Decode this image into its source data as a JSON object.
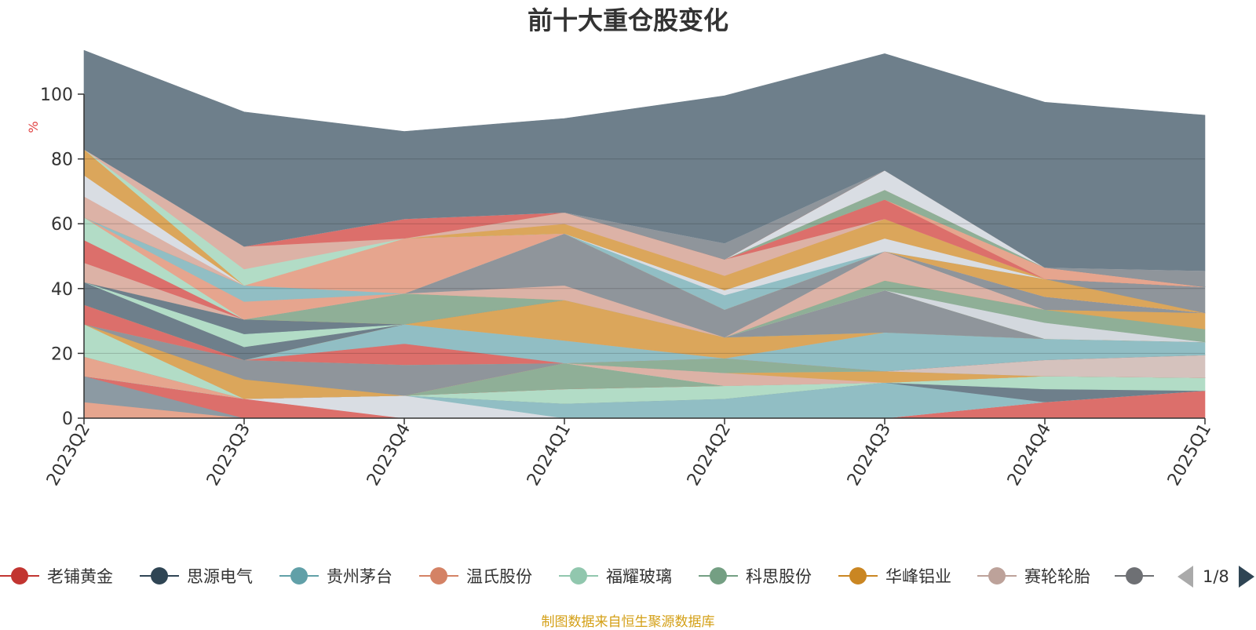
{
  "chart_data": {
    "type": "area",
    "title": "前十大重仓股变化",
    "ylabel": "%",
    "ylim": [
      0,
      100
    ],
    "yticks": [
      0,
      20,
      40,
      60,
      80,
      100
    ],
    "grid": true,
    "categories": [
      "2023Q2",
      "2023Q3",
      "2023Q4",
      "2024Q1",
      "2024Q2",
      "2024Q3",
      "2024Q4",
      "2025Q1"
    ],
    "bands": [
      {
        "color": "#e6a58e",
        "values": [
          0,
          0,
          0,
          0,
          0,
          0,
          0,
          0
        ]
      },
      {
        "color": "#d9dde3",
        "values": [
          0,
          0,
          0,
          0,
          0,
          0,
          0,
          0
        ]
      },
      {
        "color": "#d3d8de",
        "values": [
          0,
          0,
          0,
          0,
          0,
          0,
          0,
          0
        ]
      },
      {
        "color": "#91bec4",
        "values": [
          0,
          0,
          0,
          0,
          0,
          0,
          0,
          0
        ]
      },
      {
        "color": "#b2dcc6",
        "values": [
          0,
          0,
          0,
          0,
          0,
          0,
          0,
          0
        ]
      },
      {
        "color": "#dd8c8a",
        "values": [
          0,
          0,
          0,
          0,
          0,
          0,
          0,
          0
        ]
      },
      {
        "color": "#dc6f6b",
        "values": [
          0,
          0,
          0,
          0,
          0,
          0,
          0,
          0
        ]
      }
    ],
    "layers": [
      {
        "color": "#e6a58e",
        "values": [
          5,
          0,
          0,
          0,
          0,
          0,
          0,
          0
        ]
      },
      {
        "color": "#8c9aa3",
        "values": [
          8,
          0,
          0,
          0,
          0,
          0,
          0,
          0
        ]
      },
      {
        "color": "#dc6f6b",
        "values": [
          0,
          6,
          0,
          0,
          0,
          0,
          5,
          8.5
        ]
      },
      {
        "color": "#d9dde3",
        "values": [
          0,
          0,
          7,
          0,
          0,
          0,
          0,
          0
        ]
      },
      {
        "color": "#91bec4",
        "values": [
          0,
          0,
          0,
          4.5,
          6,
          11,
          0,
          0
        ]
      },
      {
        "color": "#6e7f8b",
        "values": [
          0,
          0,
          0,
          0,
          0,
          0,
          4,
          0
        ]
      },
      {
        "color": "#b2dcc6",
        "values": [
          0,
          0,
          0,
          4.5,
          4,
          0,
          4,
          4
        ]
      },
      {
        "color": "#e6a58e",
        "values": [
          6,
          0,
          0,
          0,
          0,
          0,
          0,
          0
        ]
      },
      {
        "color": "#dc6f6b",
        "values": [
          0,
          0,
          0,
          0,
          0,
          0,
          0,
          0
        ]
      },
      {
        "color": "#8faf97",
        "values": [
          0,
          0,
          0,
          8,
          0,
          0,
          0,
          0
        ]
      },
      {
        "color": "#b2dcc6",
        "values": [
          10,
          0,
          0,
          0,
          0,
          0,
          0,
          0
        ]
      },
      {
        "color": "#dcb2a6",
        "values": [
          0,
          0,
          0,
          0,
          4,
          0,
          0,
          0
        ]
      },
      {
        "color": "#dba65b",
        "values": [
          0,
          6,
          0,
          0,
          0,
          3.5,
          0,
          0
        ]
      },
      {
        "color": "#8f959b",
        "values": [
          0,
          6,
          9.5,
          0,
          0,
          0,
          0,
          0
        ]
      },
      {
        "color": "#d5c2bd",
        "values": [
          0,
          0,
          0,
          0,
          0,
          0,
          5,
          7
        ]
      },
      {
        "color": "#8faf97",
        "values": [
          0,
          0,
          0,
          0,
          4.5,
          0,
          0,
          0
        ]
      },
      {
        "color": "#dc6f6b",
        "values": [
          6,
          0,
          6.5,
          0,
          0,
          0,
          0,
          0
        ]
      },
      {
        "color": "#91bec4",
        "values": [
          0,
          0,
          6,
          7,
          0,
          12,
          6.5,
          4
        ]
      },
      {
        "color": "#dcb2a6",
        "values": [
          0,
          0,
          0,
          0,
          0,
          0,
          0,
          0
        ]
      },
      {
        "color": "#dba65b",
        "values": [
          0,
          0,
          0,
          12.5,
          6.5,
          0,
          0,
          0
        ]
      },
      {
        "color": "#6e7f8b",
        "values": [
          7,
          4,
          0,
          0,
          0,
          0,
          0,
          0
        ]
      },
      {
        "color": "#9aa0a6",
        "values": [
          0,
          0,
          0,
          0,
          0,
          0,
          0,
          0
        ]
      },
      {
        "color": "#b2dcc6",
        "values": [
          0,
          4,
          0,
          0,
          0,
          0,
          0,
          0
        ]
      },
      {
        "color": "#8f959b",
        "values": [
          0,
          0,
          0,
          0,
          0,
          13,
          0,
          0
        ]
      },
      {
        "color": "#91bec4",
        "values": [
          0,
          0,
          0,
          0,
          0,
          0,
          0,
          0
        ]
      },
      {
        "color": "#6e7f8b",
        "values": [
          0,
          4.5,
          0,
          0,
          0,
          0,
          0,
          0
        ]
      },
      {
        "color": "#dba65b",
        "values": [
          0,
          0,
          0,
          0,
          0,
          0,
          0,
          0
        ]
      },
      {
        "color": "#8faf97",
        "values": [
          0,
          0,
          9.5,
          0,
          0,
          0,
          0,
          0
        ]
      },
      {
        "color": "#d3d8de",
        "values": [
          0,
          0,
          0,
          0,
          0,
          0,
          5,
          0
        ]
      },
      {
        "color": "#8faf97",
        "values": [
          0,
          0,
          0,
          0,
          0,
          3,
          4,
          4
        ]
      },
      {
        "color": "#dba65b",
        "values": [
          0,
          0,
          0,
          0,
          0,
          0,
          0,
          5
        ]
      },
      {
        "color": "#dcb2a6",
        "values": [
          0,
          0,
          0,
          4.5,
          0,
          9,
          0,
          0
        ]
      },
      {
        "color": "#8f959b",
        "values": [
          0,
          0,
          0,
          16,
          8.5,
          0,
          0,
          0
        ]
      },
      {
        "color": "#8f959b",
        "values": [
          0,
          0,
          0,
          0,
          0,
          0,
          4,
          0
        ]
      },
      {
        "color": "#6e7f8b",
        "values": [
          0,
          0,
          0,
          0,
          0,
          0,
          0,
          0
        ]
      },
      {
        "color": "#dcb2a6",
        "values": [
          6,
          0,
          0,
          0,
          0,
          0,
          0,
          0
        ]
      },
      {
        "color": "#dc6f6b",
        "values": [
          7,
          0,
          0,
          0,
          0,
          0,
          0,
          0
        ]
      },
      {
        "color": "#b2dcc6",
        "values": [
          7,
          0,
          0,
          0,
          0,
          0,
          0,
          0
        ]
      },
      {
        "color": "#e6a58e",
        "values": [
          0,
          5.5,
          0,
          0,
          0,
          0,
          0,
          0
        ]
      },
      {
        "color": "#91bec4",
        "values": [
          0,
          5,
          0,
          0,
          0,
          0,
          0,
          0
        ]
      },
      {
        "color": "#e6a58e",
        "values": [
          0,
          0,
          17,
          0,
          0,
          0,
          0,
          0
        ]
      },
      {
        "color": "#dba65b",
        "values": [
          0,
          0,
          0,
          0,
          0,
          0,
          5.5,
          0
        ]
      },
      {
        "color": "#8f959b",
        "values": [
          0,
          0,
          0,
          0,
          0,
          0,
          0,
          8
        ]
      },
      {
        "color": "#91bec4",
        "values": [
          0,
          0,
          0,
          0,
          4.5,
          0,
          0,
          0
        ]
      },
      {
        "color": "#d9dde3",
        "values": [
          0,
          0,
          0,
          0,
          1.5,
          4,
          0,
          0
        ]
      },
      {
        "color": "#dba65b",
        "values": [
          0,
          0,
          0,
          3,
          4.5,
          6,
          0,
          0
        ]
      },
      {
        "color": "#dcb2a6",
        "values": [
          0,
          0,
          0,
          3.5,
          5,
          0,
          0,
          0
        ]
      },
      {
        "color": "#dc6f6b",
        "values": [
          0,
          0,
          0,
          0,
          0,
          6,
          0,
          0
        ]
      },
      {
        "color": "#e6a58e",
        "values": [
          0,
          0,
          0,
          0,
          0,
          0,
          3.5,
          0
        ]
      },
      {
        "color": "#8faf97",
        "values": [
          0,
          0,
          0,
          0,
          0,
          3,
          0,
          0
        ]
      },
      {
        "color": "#dcb2a6",
        "values": [
          6.5,
          0,
          0,
          0,
          0,
          0,
          0,
          0
        ]
      },
      {
        "color": "#d9dde3",
        "values": [
          0,
          0,
          0,
          0,
          0,
          6,
          0,
          0
        ]
      },
      {
        "color": "#d9dde3",
        "values": [
          6.5,
          0,
          0,
          0,
          0,
          0,
          0,
          0
        ]
      },
      {
        "color": "#dba65b",
        "values": [
          8,
          0,
          0,
          0,
          0,
          0,
          0,
          0
        ]
      },
      {
        "color": "#b2dcc6",
        "values": [
          0,
          5,
          0,
          0,
          0,
          0,
          0,
          0
        ]
      },
      {
        "color": "#dcb2a6",
        "values": [
          0,
          7,
          0,
          0,
          0,
          0,
          0,
          0
        ]
      },
      {
        "color": "#dc6f6b",
        "values": [
          0,
          0,
          6,
          0,
          0,
          0,
          0,
          0
        ]
      },
      {
        "color": "#8f959b",
        "values": [
          0,
          0,
          0,
          0,
          5,
          0,
          0,
          0
        ]
      },
      {
        "color": "#8f959b",
        "values": [
          0,
          0,
          0,
          0,
          0,
          0,
          0,
          5
        ]
      },
      {
        "color": "#d9dde3",
        "values": [
          0,
          0,
          0,
          0,
          0,
          0,
          0,
          0
        ]
      },
      {
        "color": "#6e7f8b",
        "values": [
          30.5,
          41.5,
          27,
          29,
          45.5,
          36,
          51,
          48
        ]
      }
    ]
  },
  "legend": {
    "items": [
      {
        "label": "老铺黄金",
        "color": "#c23531"
      },
      {
        "label": "思源电气",
        "color": "#2f4554"
      },
      {
        "label": "贵州茅台",
        "color": "#61a0a8"
      },
      {
        "label": "温氏股份",
        "color": "#d48265"
      },
      {
        "label": "福耀玻璃",
        "color": "#91c7ae"
      },
      {
        "label": "科思股份",
        "color": "#749f83"
      },
      {
        "label": "华峰铝业",
        "color": "#ca8622"
      },
      {
        "label": "赛轮轮胎",
        "color": "#bda29a"
      },
      {
        "label": "三",
        "color": "#6e7074"
      }
    ],
    "page_indicator": "1/8"
  },
  "footer": "制图数据来自恒生聚源数据库"
}
